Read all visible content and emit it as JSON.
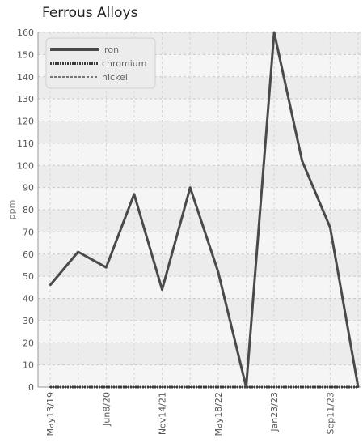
{
  "chart_data": {
    "type": "line",
    "title": "Ferrous Alloys",
    "xlabel": "",
    "ylabel": "ppm",
    "ylim": [
      0,
      160
    ],
    "yticks": [
      0,
      10,
      20,
      30,
      40,
      50,
      60,
      70,
      80,
      90,
      100,
      110,
      120,
      130,
      140,
      150,
      160
    ],
    "x": [
      "May13/19",
      "",
      "Jun8/20",
      "",
      "Nov14/21",
      "",
      "May18/22",
      "",
      "Jan23/23",
      "",
      "Sep11/23",
      ""
    ],
    "xtick_labels": [
      "May13/19",
      "Jun8/20",
      "Nov14/21",
      "May18/22",
      "Jan23/23",
      "Sep11/23"
    ],
    "legend_position": "top-left",
    "grid": true,
    "series": [
      {
        "name": "iron",
        "values": [
          46,
          61,
          54,
          87,
          44,
          90,
          52,
          0,
          160,
          102,
          72,
          0
        ],
        "color": "#4a4a4a",
        "style": "solid"
      },
      {
        "name": "chromium",
        "values": [
          0,
          0,
          0,
          0,
          0,
          0,
          0,
          0,
          0,
          0,
          0,
          0
        ],
        "color": "#3a3a3a",
        "style": "dotted"
      },
      {
        "name": "nickel",
        "values": [
          0,
          0,
          0,
          0,
          0,
          0,
          0,
          0,
          0,
          0,
          0,
          0
        ],
        "color": "#777777",
        "style": "dashed"
      }
    ]
  }
}
